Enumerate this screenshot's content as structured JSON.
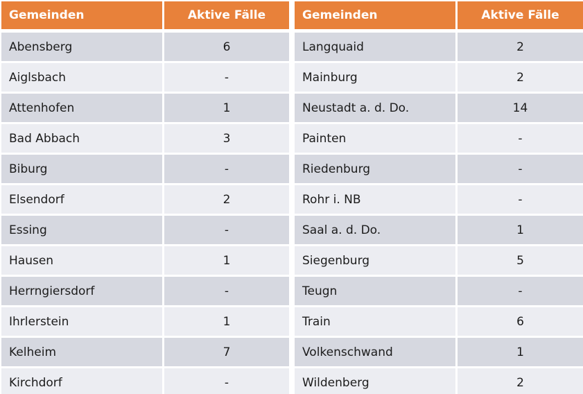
{
  "table": {
    "header": {
      "gemeinden": "Gemeinden",
      "aktive_faelle": "Aktive Fälle"
    },
    "left_rows": [
      {
        "gemeinde": "Abensberg",
        "faelle": "6"
      },
      {
        "gemeinde": "Aiglsbach",
        "faelle": "-"
      },
      {
        "gemeinde": "Attenhofen",
        "faelle": "1"
      },
      {
        "gemeinde": "Bad Abbach",
        "faelle": "3"
      },
      {
        "gemeinde": "Biburg",
        "faelle": "-"
      },
      {
        "gemeinde": "Elsendorf",
        "faelle": "2"
      },
      {
        "gemeinde": "Essing",
        "faelle": "-"
      },
      {
        "gemeinde": "Hausen",
        "faelle": "1"
      },
      {
        "gemeinde": "Herrngiersdorf",
        "faelle": "-"
      },
      {
        "gemeinde": "Ihrlerstein",
        "faelle": "1"
      },
      {
        "gemeinde": "Kelheim",
        "faelle": "7"
      },
      {
        "gemeinde": "Kirchdorf",
        "faelle": "-"
      }
    ],
    "right_rows": [
      {
        "gemeinde": "Langquaid",
        "faelle": "2"
      },
      {
        "gemeinde": "Mainburg",
        "faelle": "2"
      },
      {
        "gemeinde": "Neustadt a. d. Do.",
        "faelle": "14"
      },
      {
        "gemeinde": "Painten",
        "faelle": "-"
      },
      {
        "gemeinde": "Riedenburg",
        "faelle": "-"
      },
      {
        "gemeinde": "Rohr i. NB",
        "faelle": "-"
      },
      {
        "gemeinde": "Saal a. d. Do.",
        "faelle": "1"
      },
      {
        "gemeinde": "Siegenburg",
        "faelle": "5"
      },
      {
        "gemeinde": "Teugn",
        "faelle": "-"
      },
      {
        "gemeinde": "Train",
        "faelle": "6"
      },
      {
        "gemeinde": "Volkenschwand",
        "faelle": "1"
      },
      {
        "gemeinde": "Wildenberg",
        "faelle": "2"
      }
    ]
  },
  "colors": {
    "header_background": "#E8813A",
    "header_text": "#ffffff",
    "row_dark": "#D6D8E0",
    "row_light": "#ECEDF2",
    "body_text": "#1c1c1c",
    "divider": "#ffffff"
  }
}
